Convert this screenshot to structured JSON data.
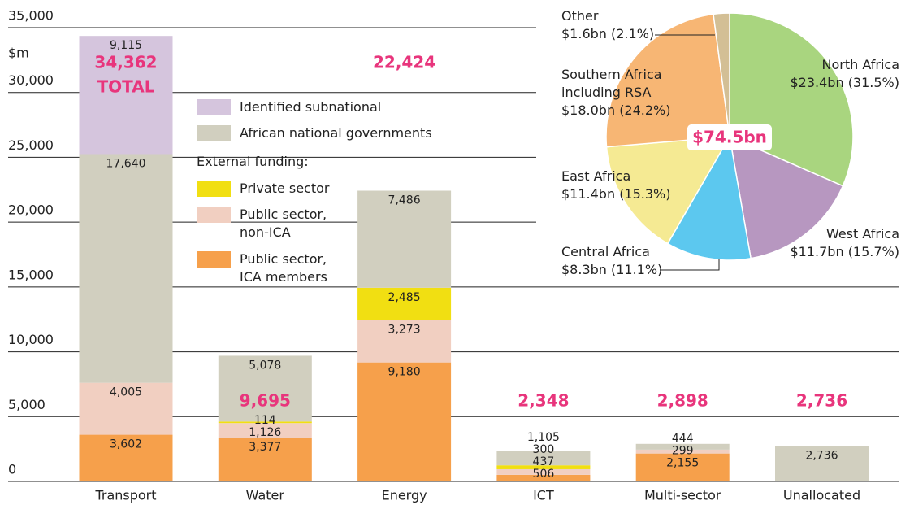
{
  "chart_data": [
    {
      "type": "bar",
      "stacked": true,
      "categories": [
        "Transport",
        "Water",
        "Energy",
        "ICT",
        "Multi-sector",
        "Unallocated"
      ],
      "y_label": "$m",
      "ylim": [
        0,
        35000
      ],
      "yticks": [
        0,
        {
          "value": 5000,
          "label": "5,000"
        },
        {
          "value": 10000,
          "label": "10,000"
        },
        {
          "value": 15000,
          "label": "15,000"
        },
        {
          "value": 20000,
          "label": "20,000"
        },
        {
          "value": 25000,
          "label": "25,000"
        },
        {
          "value": 30000,
          "label": "30,000"
        },
        {
          "value": 35000,
          "label": "35,000"
        }
      ],
      "grid": true,
      "legend_title": "External funding:",
      "series": [
        {
          "name": "Public sector,\nICA members",
          "color": "#f6a04b",
          "values": [
            3602,
            3377,
            9180,
            506,
            2155,
            null
          ],
          "value_labels": [
            "3,602",
            "3,377",
            "9,180",
            "506",
            "2,155",
            null
          ]
        },
        {
          "name": "Public sector,\nnon-ICA",
          "color": "#f1cfc1",
          "values": [
            4005,
            1126,
            3273,
            437,
            299,
            null
          ],
          "value_labels": [
            "4,005",
            "1,126",
            "3,273",
            "437",
            "299",
            null
          ]
        },
        {
          "name": "Private sector",
          "color": "#f1df12",
          "values": [
            null,
            114,
            2485,
            300,
            null,
            null
          ],
          "value_labels": [
            null,
            "114",
            "2,485",
            "300",
            null,
            null
          ]
        },
        {
          "name": "African national governments",
          "color": "#d1cfbf",
          "values": [
            17640,
            5078,
            7486,
            1105,
            444,
            2736
          ],
          "value_labels": [
            "17,640",
            "5,078",
            "7,486",
            "1,105",
            "444",
            "2,736"
          ]
        },
        {
          "name": "Identified subnational",
          "color": "#d5c5dd",
          "values": [
            9115,
            null,
            null,
            null,
            null,
            null
          ],
          "value_labels": [
            "9,115",
            null,
            null,
            null,
            null,
            null
          ]
        }
      ],
      "totals": [
        34362,
        9695,
        22424,
        2348,
        2898,
        2736
      ],
      "total_labels": [
        "34,362",
        "9,695",
        "22,424",
        "2,348",
        "2,898",
        "2,736"
      ],
      "total_note": "TOTAL"
    },
    {
      "type": "pie",
      "center_label": "$74.5bn",
      "categories": [
        "North Africa",
        "West Africa",
        "Central Africa",
        "East Africa",
        "Southern Africa\nincluding RSA",
        "Other"
      ],
      "values": [
        31.5,
        15.7,
        11.1,
        15.3,
        24.2,
        2.1
      ],
      "value_labels": [
        "$23.4bn (31.5%)",
        "$11.7bn (15.7%)",
        "$8.3bn (11.1%)",
        "$11.4bn (15.3%)",
        "$18.0bn (24.2%)",
        "$1.6bn (2.1%)"
      ],
      "colors": [
        "#a9d57f",
        "#b797c0",
        "#5cc8ef",
        "#f5ea93",
        "#f7b674",
        "#d3bf95"
      ]
    }
  ]
}
